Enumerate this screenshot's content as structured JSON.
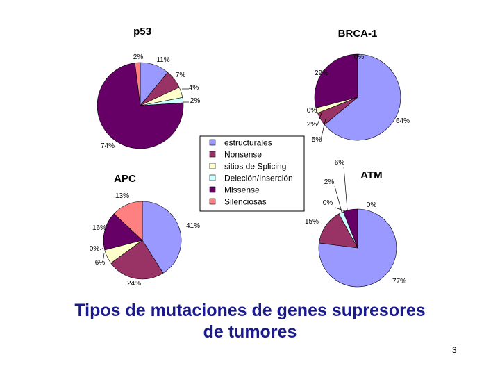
{
  "title": {
    "line1": "Tipos de mutaciones de genes supresores",
    "line2": "de tumores"
  },
  "page_number": "3",
  "legend": {
    "items": [
      {
        "label": "estructurales",
        "color": "#9999ff"
      },
      {
        "label": "Nonsense",
        "color": "#993366"
      },
      {
        "label": "sitios de Splicing",
        "color": "#ffffcc"
      },
      {
        "label": "Deleción/Inserción",
        "color": "#ccffff"
      },
      {
        "label": "Missense",
        "color": "#660066"
      },
      {
        "label": "Silenciosas",
        "color": "#ff8080"
      }
    ]
  },
  "chart_data": [
    {
      "type": "pie",
      "title": "p53",
      "categories": [
        "estructurales",
        "Nonsense",
        "sitios de Splicing",
        "Deleción/Inserción",
        "Missense",
        "Silenciosas"
      ],
      "values": [
        11,
        7,
        4,
        2,
        74,
        2
      ],
      "labels": [
        "11%",
        "7%",
        "4%",
        "2%",
        "74%",
        "2%"
      ]
    },
    {
      "type": "pie",
      "title": "BRCA-1",
      "categories": [
        "estructurales",
        "Nonsense",
        "sitios de Splicing",
        "Deleción/Inserción",
        "Missense",
        "Silenciosas"
      ],
      "values": [
        64,
        5,
        2,
        0,
        29,
        0
      ],
      "labels": [
        "64%",
        "5%",
        "2%",
        "0%",
        "29%",
        "0%"
      ]
    },
    {
      "type": "pie",
      "title": "APC",
      "categories": [
        "estructurales",
        "Nonsense",
        "sitios de Splicing",
        "Deleción/Inserción",
        "Missense",
        "Silenciosas"
      ],
      "values": [
        41,
        24,
        6,
        0,
        16,
        13
      ],
      "labels": [
        "41%",
        "24%",
        "6%",
        "0%",
        "16%",
        "13%"
      ]
    },
    {
      "type": "pie",
      "title": "ATM",
      "categories": [
        "estructurales",
        "Nonsense",
        "sitios de Splicing",
        "Deleción/Inserción",
        "Missense",
        "Silenciosas"
      ],
      "values": [
        77,
        15,
        0,
        2,
        6,
        0
      ],
      "labels": [
        "77%",
        "15%",
        "0%",
        "2%",
        "6%",
        "0%"
      ]
    }
  ]
}
